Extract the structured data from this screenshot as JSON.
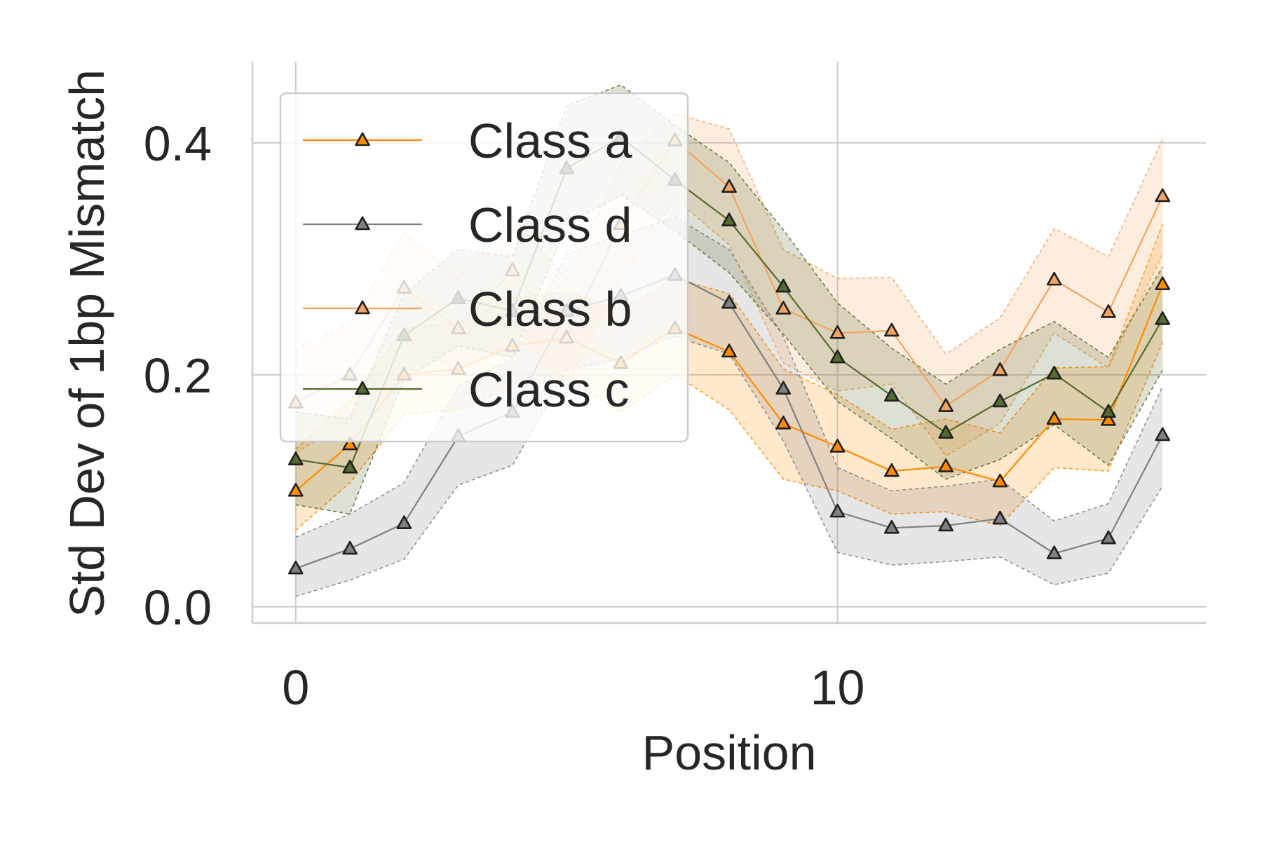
{
  "chart_data": {
    "type": "line",
    "xlabel": "Position",
    "ylabel": "Std Dev of 1bp Mismatch",
    "xlim": [
      -0.8,
      16.8
    ],
    "ylim": [
      -0.014,
      0.47
    ],
    "x_ticks": [
      0,
      10
    ],
    "y_ticks": [
      0.0,
      0.2,
      0.4
    ],
    "x_tick_labels": [
      "0",
      "10"
    ],
    "y_tick_labels": [
      "0.0",
      "0.2",
      "0.4"
    ],
    "grid": true,
    "legend_position": "upper-left",
    "marker": "triangle",
    "x": [
      0,
      1,
      2,
      3,
      4,
      5,
      6,
      7,
      8,
      9,
      10,
      11,
      12,
      13,
      14,
      15,
      16
    ],
    "series": [
      {
        "name": "Class a",
        "color": "#ff8c00",
        "values": [
          0.1,
          0.14,
          0.2,
          0.205,
          0.225,
          0.232,
          0.21,
          0.24,
          0.22,
          0.158,
          0.138,
          0.117,
          0.121,
          0.108,
          0.162,
          0.161,
          0.278
        ],
        "lower": [
          0.066,
          0.107,
          0.166,
          0.17,
          0.19,
          0.196,
          0.168,
          0.2,
          0.17,
          0.11,
          0.1,
          0.08,
          0.082,
          0.07,
          0.12,
          0.117,
          0.228
        ],
        "upper": [
          0.136,
          0.178,
          0.24,
          0.245,
          0.266,
          0.272,
          0.257,
          0.283,
          0.27,
          0.205,
          0.183,
          0.153,
          0.162,
          0.15,
          0.206,
          0.207,
          0.33
        ]
      },
      {
        "name": "Class d",
        "color": "#808080",
        "values": [
          0.033,
          0.05,
          0.072,
          0.147,
          0.168,
          0.255,
          0.268,
          0.286,
          0.262,
          0.188,
          0.082,
          0.068,
          0.07,
          0.076,
          0.046,
          0.059,
          0.148
        ],
        "lower": [
          0.009,
          0.023,
          0.041,
          0.105,
          0.122,
          0.204,
          0.214,
          0.233,
          0.218,
          0.143,
          0.047,
          0.036,
          0.039,
          0.043,
          0.019,
          0.029,
          0.104
        ],
        "upper": [
          0.06,
          0.08,
          0.107,
          0.19,
          0.214,
          0.304,
          0.32,
          0.336,
          0.308,
          0.233,
          0.12,
          0.1,
          0.104,
          0.11,
          0.074,
          0.089,
          0.19
        ]
      },
      {
        "name": "Class b",
        "color": "#f4a460",
        "values": [
          0.176,
          0.2,
          0.275,
          0.24,
          0.29,
          0.232,
          0.33,
          0.402,
          0.362,
          0.257,
          0.236,
          0.238,
          0.173,
          0.204,
          0.282,
          0.254,
          0.354
        ],
        "lower": [
          0.133,
          0.16,
          0.232,
          0.202,
          0.245,
          0.19,
          0.282,
          0.352,
          0.312,
          0.21,
          0.186,
          0.192,
          0.13,
          0.158,
          0.236,
          0.206,
          0.304
        ],
        "upper": [
          0.222,
          0.244,
          0.322,
          0.284,
          0.337,
          0.282,
          0.382,
          0.425,
          0.412,
          0.308,
          0.283,
          0.284,
          0.218,
          0.249,
          0.326,
          0.302,
          0.403
        ]
      },
      {
        "name": "Class c",
        "color": "#556b2f",
        "values": [
          0.127,
          0.12,
          0.234,
          0.266,
          0.255,
          0.378,
          0.405,
          0.368,
          0.333,
          0.276,
          0.215,
          0.182,
          0.15,
          0.177,
          0.201,
          0.168,
          0.248
        ],
        "lower": [
          0.088,
          0.08,
          0.196,
          0.225,
          0.215,
          0.33,
          0.355,
          0.324,
          0.288,
          0.235,
          0.177,
          0.145,
          0.11,
          0.127,
          0.157,
          0.122,
          0.204
        ],
        "upper": [
          0.168,
          0.162,
          0.27,
          0.308,
          0.302,
          0.432,
          0.45,
          0.415,
          0.383,
          0.325,
          0.262,
          0.223,
          0.192,
          0.222,
          0.246,
          0.215,
          0.293
        ]
      }
    ]
  }
}
